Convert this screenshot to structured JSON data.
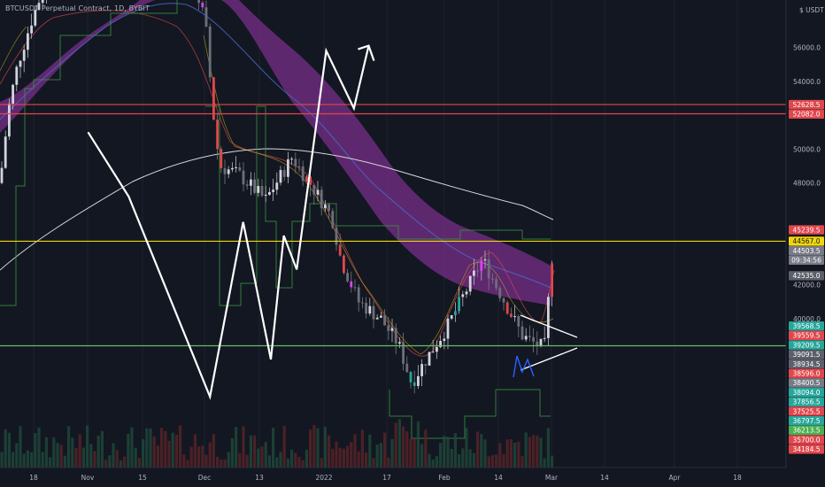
{
  "title": "BTCUSDT Perpetual Contract, 1D, BYBIT",
  "currency": "USDT",
  "chart_data": {
    "type": "candlestick",
    "y_axis_ticks": [
      {
        "label": "56000.0",
        "value": 56000
      },
      {
        "label": "54000.0",
        "value": 54000
      },
      {
        "label": "50000.0",
        "value": 50000
      },
      {
        "label": "48000.0",
        "value": 48000
      },
      {
        "label": "42000.0",
        "value": 42000
      },
      {
        "label": "40000.0",
        "value": 40000
      }
    ],
    "x_axis_ticks": [
      "18",
      "Nov",
      "15",
      "Dec",
      "13",
      "2022",
      "17",
      "Feb",
      "14",
      "Mar",
      "14",
      "Apr",
      "18"
    ],
    "price_labels": [
      {
        "label": "52628.5",
        "color": "#e0474c",
        "value": 52628.5
      },
      {
        "label": "52082.0",
        "color": "#e0474c",
        "value": 52082
      },
      {
        "label": "45239.5",
        "color": "#e0474c",
        "value": 45239.5
      },
      {
        "label": "44567.0",
        "color": "#f0d60c",
        "value": 44567
      },
      {
        "label": "44503.5",
        "color": "#787b86",
        "value": 44503.5
      },
      {
        "label": "09:34:56",
        "color": "#787b86",
        "value": 44420
      },
      {
        "label": "42535.0",
        "color": "#5d606b",
        "value": 42535
      },
      {
        "label": "39568.5",
        "color": "#26a69a",
        "value": 39568.5
      },
      {
        "label": "39559.5",
        "color": "#e0474c",
        "value": 39559.5
      },
      {
        "label": "39209.5",
        "color": "#26a69a",
        "value": 39209.5
      },
      {
        "label": "39091.5",
        "color": "#5d606b",
        "value": 39091.5
      },
      {
        "label": "38934.5",
        "color": "#5d606b",
        "value": 38934.5
      },
      {
        "label": "38596.0",
        "color": "#e0474c",
        "value": 38596
      },
      {
        "label": "38400.5",
        "color": "#787b86",
        "value": 38400.5
      },
      {
        "label": "38094.0",
        "color": "#26a69a",
        "value": 38094
      },
      {
        "label": "37856.5",
        "color": "#26a69a",
        "value": 37856.5
      },
      {
        "label": "37525.5",
        "color": "#e0474c",
        "value": 37525.5
      },
      {
        "label": "36797.5",
        "color": "#26a69a",
        "value": 36797.5
      },
      {
        "label": "36213.5",
        "color": "#4caf50",
        "value": 36213.5
      },
      {
        "label": "35700.0",
        "color": "#e0474c",
        "value": 35700
      },
      {
        "label": "34184.5",
        "color": "#e0474c",
        "value": 34184.5
      }
    ],
    "horizontal_lines": [
      {
        "value": 52628.5,
        "color": "#e0474c"
      },
      {
        "value": 52082,
        "color": "#e0474c"
      },
      {
        "value": 44567,
        "color": "#f0d60c"
      },
      {
        "value": 38400.5,
        "color": "#66bb6a"
      }
    ],
    "projection_path": [
      {
        "date": "2021-11-17",
        "price": 51000
      },
      {
        "date": "2021-12-09",
        "price": 47200
      },
      {
        "date": "2022-01-22",
        "price": 35400
      },
      {
        "date": "2022-02-09",
        "price": 45700
      },
      {
        "date": "2022-02-24",
        "price": 37600
      },
      {
        "date": "2022-03-03",
        "price": 44900
      },
      {
        "date": "2022-03-10",
        "price": 42900
      },
      {
        "date": "2022-03-26",
        "price": 55800
      },
      {
        "date": "2022-04-10",
        "price": 52400
      },
      {
        "date": "2022-04-18",
        "price": 56100
      }
    ],
    "grid": false,
    "legend": "none"
  }
}
